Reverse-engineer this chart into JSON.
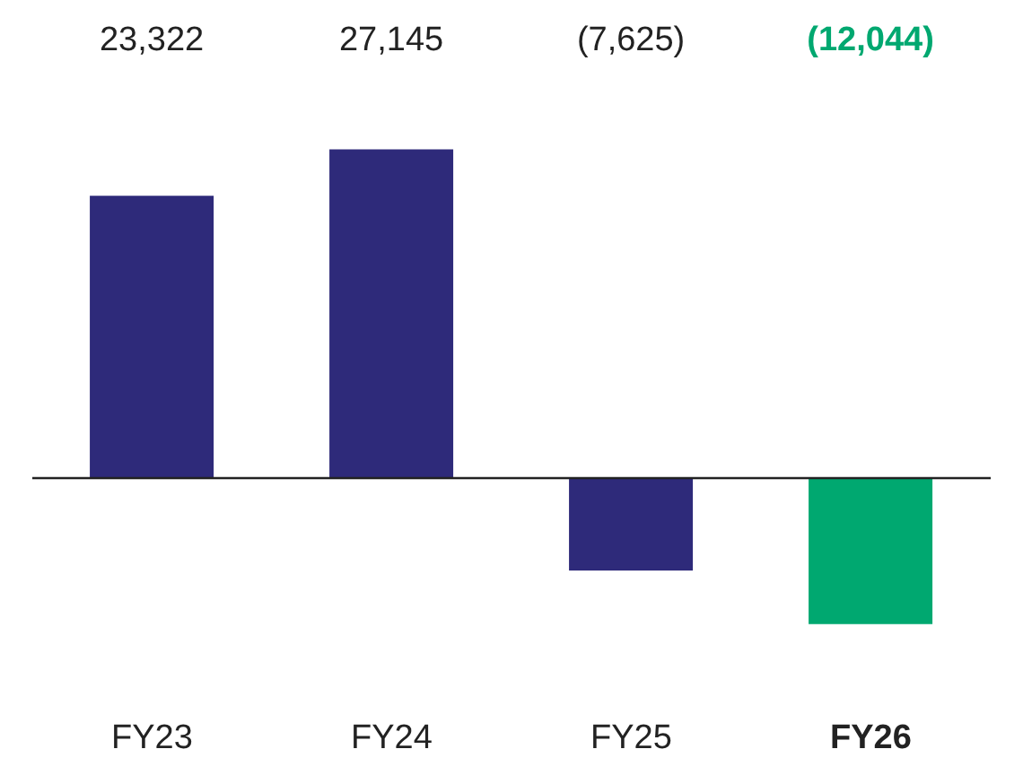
{
  "chart_data": {
    "type": "bar",
    "categories": [
      "FY23",
      "FY24",
      "FY25",
      "FY26"
    ],
    "values": [
      23322,
      27145,
      -7625,
      -12044
    ],
    "color": "#2e2a7a",
    "colors": [
      "#2e2a7a",
      "#2e2a7a",
      "#2e2a7a",
      "#00a870"
    ],
    "value_labels": [
      "23,322",
      "27,145",
      "(7,625)",
      "(12,044)"
    ]
  }
}
